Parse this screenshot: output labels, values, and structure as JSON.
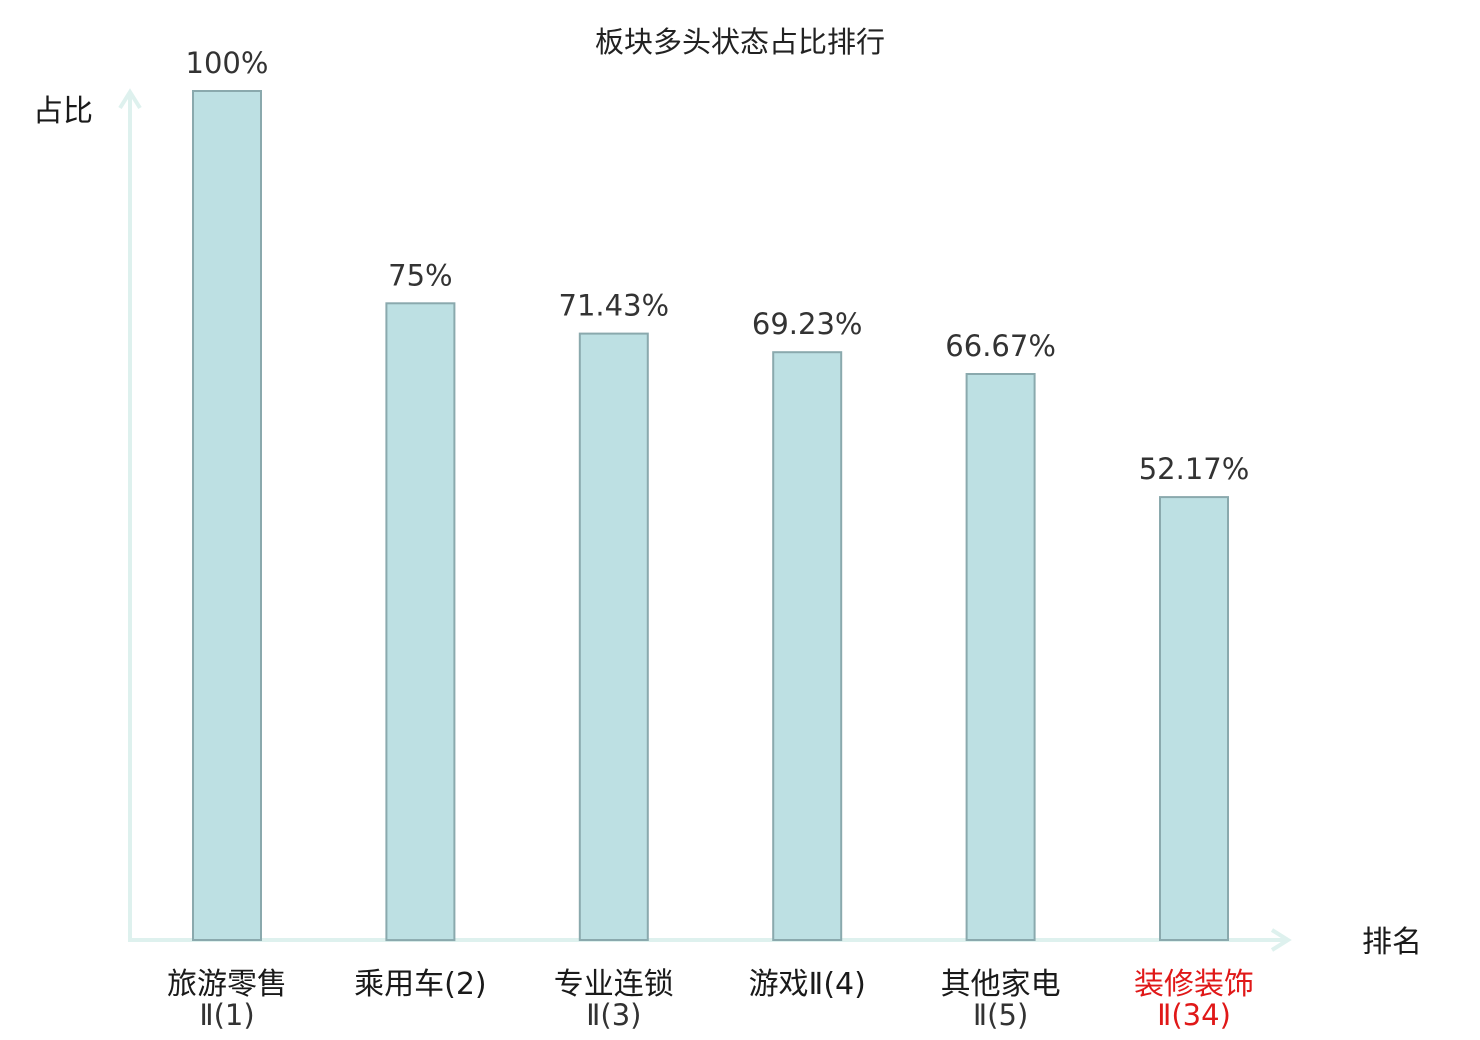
{
  "chart_data": {
    "type": "bar",
    "title": "板块多头状态占比排行",
    "ylabel": "占比",
    "xlabel": "排名",
    "ylim": [
      0,
      100
    ],
    "grid": false,
    "categories": [
      {
        "line1": "旅游零售",
        "line2": "Ⅱ(1)",
        "highlight": false
      },
      {
        "line1": "乘用车(2)",
        "line2": "",
        "highlight": false
      },
      {
        "line1": "专业连锁",
        "line2": "Ⅱ(3)",
        "highlight": false
      },
      {
        "line1": "游戏Ⅱ(4)",
        "line2": "",
        "highlight": false
      },
      {
        "line1": "其他家电",
        "line2": "Ⅱ(5)",
        "highlight": false
      },
      {
        "line1": "装修装饰",
        "line2": "Ⅱ(34)",
        "highlight": true
      }
    ],
    "values": [
      100,
      75,
      71.43,
      69.23,
      66.67,
      52.17
    ],
    "value_labels": [
      "100%",
      "75%",
      "71.43%",
      "69.23%",
      "66.67%",
      "52.17%"
    ]
  },
  "colors": {
    "bar_fill": "#bde0e3",
    "bar_stroke": "#8aa9ad",
    "axis": "#def1ee",
    "highlight_text": "#e01818",
    "normal_text": "#1a1a1a"
  }
}
